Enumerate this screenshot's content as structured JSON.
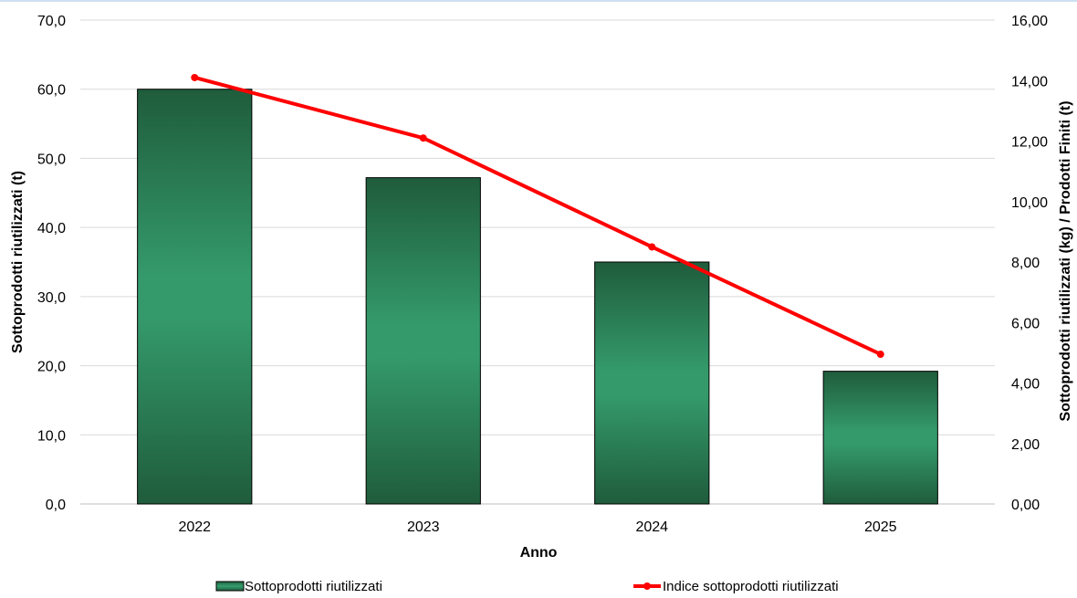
{
  "chart_data": {
    "type": "bar",
    "title": "",
    "xlabel": "Anno",
    "ylabel": "Sottoprodotti riutilizzati (t)",
    "y2label": "Sottoprodotti riutilizzati (kg) / Prodotti Finiti (t)",
    "categories": [
      "2022",
      "2023",
      "2024",
      "2025"
    ],
    "ylim": [
      0,
      70
    ],
    "y2lim": [
      0,
      16
    ],
    "yticks": [
      "0,0",
      "10,0",
      "20,0",
      "30,0",
      "40,0",
      "50,0",
      "60,0",
      "70,0"
    ],
    "y2ticks": [
      "0,00",
      "2,00",
      "4,00",
      "6,00",
      "8,00",
      "10,00",
      "12,00",
      "14,00",
      "16,00"
    ],
    "grid": true,
    "legend_position": "bottom",
    "series": [
      {
        "name": "Sottoprodotti riutilizzati",
        "type": "bar",
        "axis": "left",
        "values": [
          60.0,
          47.2,
          35.0,
          19.2
        ],
        "color": "#2e9466",
        "dark_color": "#1f5c3c"
      },
      {
        "name": "Indice sottoprodotti riutilizzati",
        "type": "line",
        "axis": "right",
        "values": [
          14.1,
          12.1,
          8.5,
          4.95
        ],
        "color": "#ff0000"
      }
    ]
  }
}
